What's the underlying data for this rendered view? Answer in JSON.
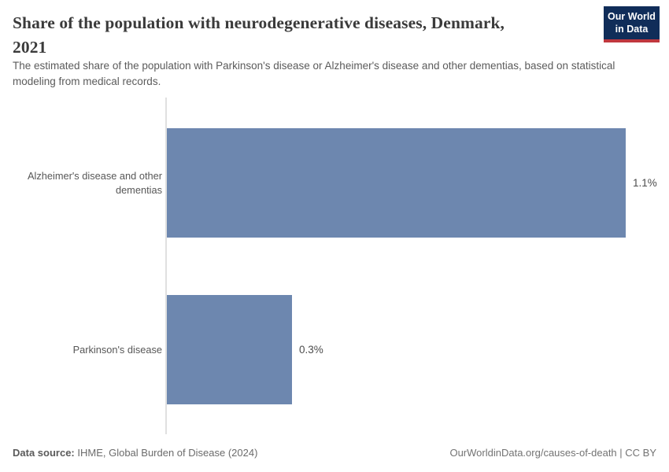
{
  "header": {
    "title_line1": "Share of the population with neurodegenerative diseases, Denmark,",
    "title_line2": "2021",
    "subtitle": "The estimated share of the population with Parkinson's disease or Alzheimer's disease and other dementias, based on statistical modeling from medical records.",
    "logo": {
      "line1": "Our World",
      "line2": "in Data"
    }
  },
  "chart_data": {
    "type": "bar",
    "orientation": "horizontal",
    "title": "Share of the population with neurodegenerative diseases, Denmark, 2021",
    "categories": [
      "Alzheimer's disease and other dementias",
      "Parkinson's disease"
    ],
    "values": [
      1.1,
      0.3
    ],
    "value_labels": [
      "1.1%",
      "0.3%"
    ],
    "unit": "%",
    "xlim": [
      0,
      1.1
    ],
    "grid": false,
    "legend": "none"
  },
  "footer": {
    "source_label": "Data source:",
    "source_text": " IHME, Global Burden of Disease (2024)",
    "right_text": "OurWorldinData.org/causes-of-death | CC BY"
  },
  "colors": {
    "bar": "#6d87af",
    "logo_bg": "#102d59",
    "logo_accent": "#c0383e",
    "title_text": "#3a3a3a"
  }
}
